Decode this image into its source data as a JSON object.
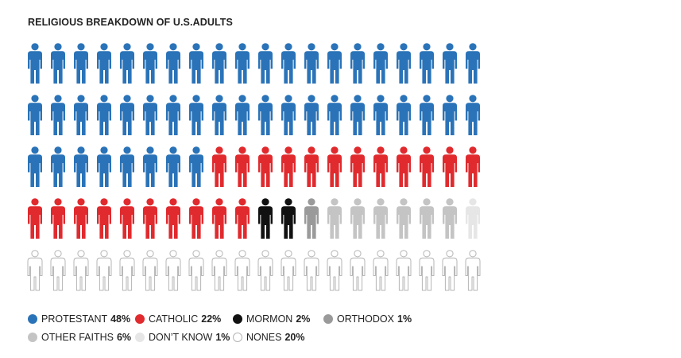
{
  "chart_data": {
    "type": "pictogram",
    "title": "RELIGIOUS BREAKDOWN OF U.S.ADULTS",
    "total_units": 100,
    "series": [
      {
        "name": "PROTESTANT",
        "label": "48%",
        "value": 48,
        "color": "#2a73b8",
        "hollow": false
      },
      {
        "name": "CATHOLIC",
        "label": "22%",
        "value": 22,
        "color": "#e02a2e",
        "hollow": false
      },
      {
        "name": "MORMON",
        "label": "2%",
        "value": 2,
        "color": "#111111",
        "hollow": false
      },
      {
        "name": "ORTHODOX",
        "label": "1%",
        "value": 1,
        "color": "#9a9a9a",
        "hollow": false
      },
      {
        "name": "OTHER FAITHS",
        "label": "6%",
        "value": 6,
        "color": "#c4c4c4",
        "hollow": false
      },
      {
        "name": "DON’T KNOW",
        "label": "1%",
        "value": 1,
        "color": "#e6e6e6",
        "hollow": false
      },
      {
        "name": "NONES",
        "label": "20%",
        "value": 20,
        "color": "#b5b5b5",
        "hollow": true
      }
    ]
  }
}
